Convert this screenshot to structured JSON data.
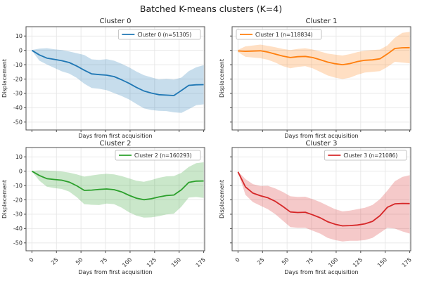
{
  "figure": {
    "title": "Batched K-means clusters (K=4)"
  },
  "axes": {
    "xlabel": "Days from first acquisition",
    "ylabel": "Displacement",
    "x_ticks": [
      0,
      25,
      50,
      75,
      100,
      125,
      150,
      175
    ],
    "y_ticks": [
      10,
      0,
      -10,
      -20,
      -30,
      -40,
      -50
    ],
    "xlim": [
      -6,
      176
    ],
    "ylim": [
      -55.5,
      16.5
    ],
    "grid": true,
    "spine_color": "#4d4d4d",
    "grid_color": "#e6e6e6",
    "text_color": "#262626"
  },
  "chart_data": [
    {
      "type": "line",
      "cluster": 0,
      "title": "Cluster 0",
      "legend": "Cluster 0 (n=51305)",
      "n": 51305,
      "color": "#1f77b4",
      "legend_loc": "tr",
      "x": [
        0,
        7.6,
        15.2,
        22.8,
        30.4,
        38,
        45.7,
        53.3,
        60.9,
        68.5,
        76.1,
        83.7,
        91.3,
        98.9,
        106.5,
        114.1,
        121.7,
        129.3,
        137,
        144.6,
        152.2,
        159.8,
        167.4,
        175
      ],
      "mean": [
        0,
        -3.2,
        -5.4,
        -6.3,
        -7.2,
        -8.5,
        -11,
        -13.8,
        -16.4,
        -16.9,
        -17.3,
        -18.3,
        -20.5,
        -23,
        -25.8,
        -28.3,
        -29.8,
        -30.9,
        -31.2,
        -31.5,
        -28,
        -24.4,
        -24,
        -23.9
      ],
      "band_upper": [
        0.3,
        1.2,
        1.5,
        0.8,
        0.2,
        -0.8,
        -2,
        -3.2,
        -6.3,
        -6.6,
        -6.2,
        -7.2,
        -9.3,
        -11.8,
        -14.8,
        -17.3,
        -18.8,
        -20.3,
        -19.9,
        -20.4,
        -19,
        -14.5,
        -11.8,
        -10.3
      ],
      "band_lower": [
        -0.3,
        -7.2,
        -9.8,
        -12.2,
        -14.6,
        -16.2,
        -19.2,
        -23.2,
        -26.2,
        -26.8,
        -27.8,
        -29.8,
        -31.8,
        -34.2,
        -37.4,
        -40.4,
        -41.6,
        -42.2,
        -42.3,
        -43.2,
        -43.6,
        -41,
        -38.2,
        -37.6
      ]
    },
    {
      "type": "line",
      "cluster": 1,
      "title": "Cluster 1",
      "legend": "Cluster 1 (n=118834)",
      "n": 118834,
      "color": "#ff7f0e",
      "legend_loc": "tl",
      "x": [
        0,
        7.6,
        15.2,
        22.8,
        30.4,
        38,
        45.7,
        53.3,
        60.9,
        68.5,
        76.1,
        83.7,
        91.3,
        98.9,
        106.5,
        114.1,
        121.7,
        129.3,
        137,
        144.6,
        152.2,
        159.8,
        167.4,
        175
      ],
      "mean": [
        -0.4,
        -0.7,
        -0.5,
        -0.3,
        -1.2,
        -2.6,
        -4,
        -5,
        -4.4,
        -4.2,
        -5,
        -6.5,
        -8.2,
        -9.3,
        -10,
        -9.2,
        -7.8,
        -6.9,
        -6.6,
        -5.9,
        -2.5,
        1.3,
        1.8,
        1.9
      ],
      "band_upper": [
        0.4,
        2.8,
        3.4,
        4,
        3.2,
        2.2,
        1,
        0.2,
        1,
        1.4,
        0.6,
        -0.8,
        -2.2,
        -3,
        -3.6,
        -2.6,
        -1.2,
        -0.2,
        0.2,
        0.6,
        3.4,
        8.8,
        12.2,
        12.9
      ],
      "band_lower": [
        -1.2,
        -4.5,
        -5,
        -5.5,
        -6.5,
        -8.5,
        -11,
        -12.5,
        -11.5,
        -11,
        -12.5,
        -15,
        -17.5,
        -19,
        -20,
        -19,
        -17,
        -15.5,
        -15,
        -14.5,
        -11.5,
        -8,
        -8.5,
        -9
      ]
    },
    {
      "type": "line",
      "cluster": 2,
      "title": "Cluster 2",
      "legend": "Cluster 2 (n=160293)",
      "n": 160293,
      "color": "#2ca02c",
      "legend_loc": "tr",
      "x": [
        0,
        7.6,
        15.2,
        22.8,
        30.4,
        38,
        45.7,
        53.3,
        60.9,
        68.5,
        76.1,
        83.7,
        91.3,
        98.9,
        106.5,
        114.1,
        121.7,
        129.3,
        137,
        144.6,
        152.2,
        159.8,
        167.4,
        175
      ],
      "mean": [
        0,
        -3,
        -5.2,
        -5.8,
        -6.3,
        -7.6,
        -10.2,
        -13.4,
        -13.2,
        -12.7,
        -12.4,
        -12.9,
        -14.4,
        -16.8,
        -18.8,
        -19.9,
        -19.2,
        -18,
        -17,
        -16.6,
        -13,
        -7.8,
        -6.9,
        -6.8
      ],
      "band_upper": [
        0.2,
        0.6,
        0.4,
        0.2,
        -0.2,
        -1,
        -2.2,
        -3.8,
        -3,
        -2.2,
        -1.8,
        -2.2,
        -3.4,
        -5,
        -6.6,
        -7.4,
        -6.2,
        -4.6,
        -3.6,
        -3.4,
        -1.2,
        3,
        5.6,
        6.2
      ],
      "band_lower": [
        -0.2,
        -6.6,
        -10.8,
        -11.8,
        -12.4,
        -14.2,
        -18.2,
        -23,
        -23.4,
        -23.6,
        -22.6,
        -23,
        -25.4,
        -28.6,
        -31,
        -32.4,
        -32.2,
        -31.4,
        -30.2,
        -29.6,
        -24.8,
        -18.4,
        -18,
        -18.6
      ]
    },
    {
      "type": "line",
      "cluster": 3,
      "title": "Cluster 3",
      "legend": "Cluster 3 (n=21086)",
      "n": 21086,
      "color": "#d62728",
      "legend_loc": "tr",
      "x": [
        0,
        7.6,
        15.2,
        22.8,
        30.4,
        38,
        45.7,
        53.3,
        60.9,
        68.5,
        76.1,
        83.7,
        91.3,
        98.9,
        106.5,
        114.1,
        121.7,
        129.3,
        137,
        144.6,
        152.2,
        159.8,
        167.4,
        175
      ],
      "mean": [
        -0.5,
        -11,
        -15.3,
        -17.1,
        -18.5,
        -21,
        -24.6,
        -28.4,
        -28.8,
        -28.6,
        -30.4,
        -32.5,
        -35.2,
        -37,
        -38.1,
        -37.9,
        -37.5,
        -36.7,
        -35,
        -31,
        -25.2,
        -22.8,
        -22.5,
        -22.6
      ],
      "band_upper": [
        -0.2,
        -5.5,
        -9,
        -10.3,
        -10.2,
        -12,
        -14.5,
        -17.5,
        -18,
        -17.8,
        -19.5,
        -21.5,
        -24,
        -26.5,
        -28,
        -27.5,
        -26.5,
        -25.5,
        -23.5,
        -19.5,
        -13.5,
        -7,
        -4,
        -2.8
      ],
      "band_lower": [
        -0.8,
        -16.5,
        -21.5,
        -24,
        -26.5,
        -30,
        -34.5,
        -39,
        -39.5,
        -39.5,
        -41.5,
        -43.5,
        -46.5,
        -48,
        -49,
        -48.5,
        -48.5,
        -48,
        -46.5,
        -43,
        -39.5,
        -40,
        -42,
        -43.5
      ]
    }
  ]
}
